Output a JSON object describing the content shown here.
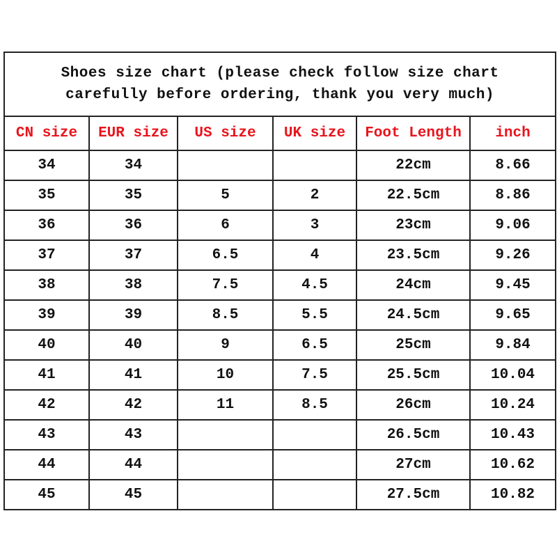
{
  "title_line1": "Shoes size chart (please check follow size chart",
  "title_line2": "carefully before ordering, thank you very much)",
  "header_color": "#e8141c",
  "headers": [
    "CN size",
    "EUR size",
    "US size",
    "UK size",
    "Foot Length",
    "inch"
  ],
  "rows": [
    [
      "34",
      "34",
      "",
      "",
      "22cm",
      "8.66"
    ],
    [
      "35",
      "35",
      "5",
      "2",
      "22.5cm",
      "8.86"
    ],
    [
      "36",
      "36",
      "6",
      "3",
      "23cm",
      "9.06"
    ],
    [
      "37",
      "37",
      "6.5",
      "4",
      "23.5cm",
      "9.26"
    ],
    [
      "38",
      "38",
      "7.5",
      "4.5",
      "24cm",
      "9.45"
    ],
    [
      "39",
      "39",
      "8.5",
      "5.5",
      "24.5cm",
      "9.65"
    ],
    [
      "40",
      "40",
      "9",
      "6.5",
      "25cm",
      "9.84"
    ],
    [
      "41",
      "41",
      "10",
      "7.5",
      "25.5cm",
      "10.04"
    ],
    [
      "42",
      "42",
      "11",
      "8.5",
      "26cm",
      "10.24"
    ],
    [
      "43",
      "43",
      "",
      "",
      "26.5cm",
      "10.43"
    ],
    [
      "44",
      "44",
      "",
      "",
      "27cm",
      "10.62"
    ],
    [
      "45",
      "45",
      "",
      "",
      "27.5cm",
      "10.82"
    ]
  ]
}
